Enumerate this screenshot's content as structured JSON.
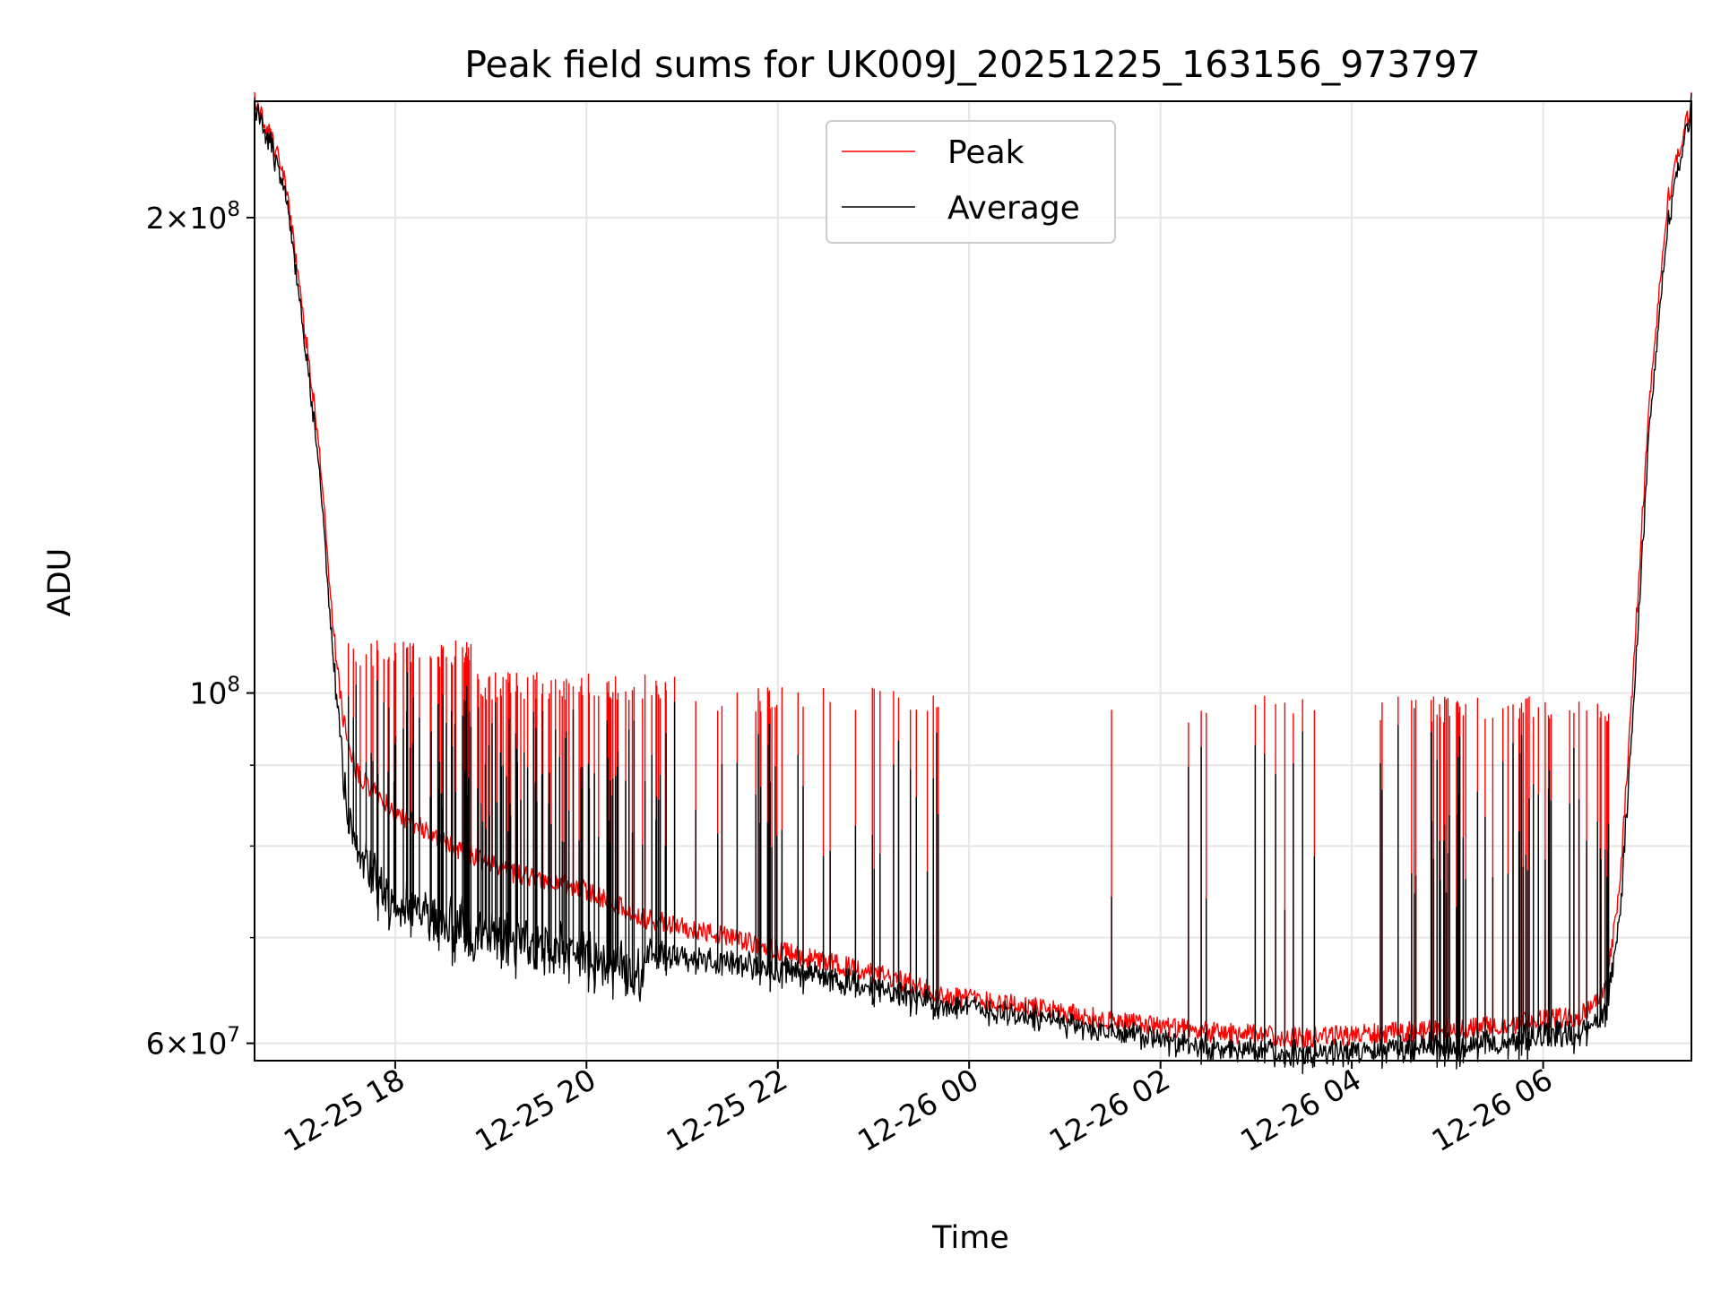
{
  "chart_data": {
    "type": "line",
    "title": "Peak field sums for UK009J_20251225_163156_973797",
    "xlabel": "Time",
    "ylabel": "ADU",
    "yscale": "log",
    "xlim_hours": [
      16.53,
      31.55
    ],
    "ylim": [
      58500000,
      237000000
    ],
    "x_ticks": [
      {
        "hour": 18,
        "label": "12-25 18"
      },
      {
        "hour": 20,
        "label": "12-25 20"
      },
      {
        "hour": 22,
        "label": "12-25 22"
      },
      {
        "hour": 24,
        "label": "12-26 00"
      },
      {
        "hour": 26,
        "label": "12-26 02"
      },
      {
        "hour": 28,
        "label": "12-26 04"
      },
      {
        "hour": 30,
        "label": "12-26 06"
      }
    ],
    "y_ticks": [
      {
        "value": 60000000,
        "mant": "6",
        "exp": "7"
      },
      {
        "value": 100000000,
        "mant": "",
        "exp": "8"
      },
      {
        "value": 200000000,
        "mant": "2",
        "exp": "8"
      }
    ],
    "y_minor_ticks": [
      70000000,
      80000000,
      90000000
    ],
    "grid": true,
    "legend_position": "top-center",
    "series": [
      {
        "name": "Peak",
        "color": "#ff0000",
        "x_hours": [
          16.53,
          16.7,
          16.85,
          17.0,
          17.2,
          17.35,
          17.45,
          17.6,
          18.0,
          18.6,
          19.2,
          20.0,
          20.6,
          21.5,
          22.3,
          23.0,
          23.55,
          23.65,
          24.5,
          25.5,
          26.5,
          27.5,
          28.5,
          29.5,
          30.4,
          30.65,
          30.8,
          30.95,
          31.1,
          31.3,
          31.55
        ],
        "values": [
          237000000,
          225000000,
          212000000,
          180000000,
          145000000,
          110000000,
          97000000,
          89000000,
          84000000,
          80000000,
          77000000,
          75000000,
          72000000,
          70000000,
          68000000,
          66500000,
          65000000,
          64500000,
          63500000,
          62000000,
          61000000,
          60500000,
          61000000,
          61500000,
          62500000,
          65000000,
          75000000,
          105000000,
          150000000,
          205000000,
          237000000
        ]
      },
      {
        "name": "Average",
        "color": "#000000",
        "x_hours": [
          16.53,
          16.7,
          16.85,
          17.0,
          17.2,
          17.35,
          17.45,
          17.6,
          18.0,
          18.6,
          19.2,
          20.0,
          20.6,
          21.5,
          22.3,
          23.0,
          23.55,
          23.65,
          24.5,
          25.5,
          26.5,
          27.5,
          28.5,
          29.5,
          30.4,
          30.65,
          30.8,
          30.95,
          31.1,
          31.3,
          31.55
        ],
        "values": [
          237000000,
          224000000,
          210000000,
          178000000,
          142000000,
          106000000,
          92000000,
          82000000,
          77000000,
          74000000,
          72500000,
          71000000,
          69000000,
          68000000,
          67000000,
          65500000,
          64500000,
          64000000,
          63000000,
          61500000,
          60000000,
          59500000,
          60000000,
          60500000,
          61500000,
          63500000,
          72000000,
          100000000,
          145000000,
          200000000,
          237000000
        ]
      }
    ]
  }
}
